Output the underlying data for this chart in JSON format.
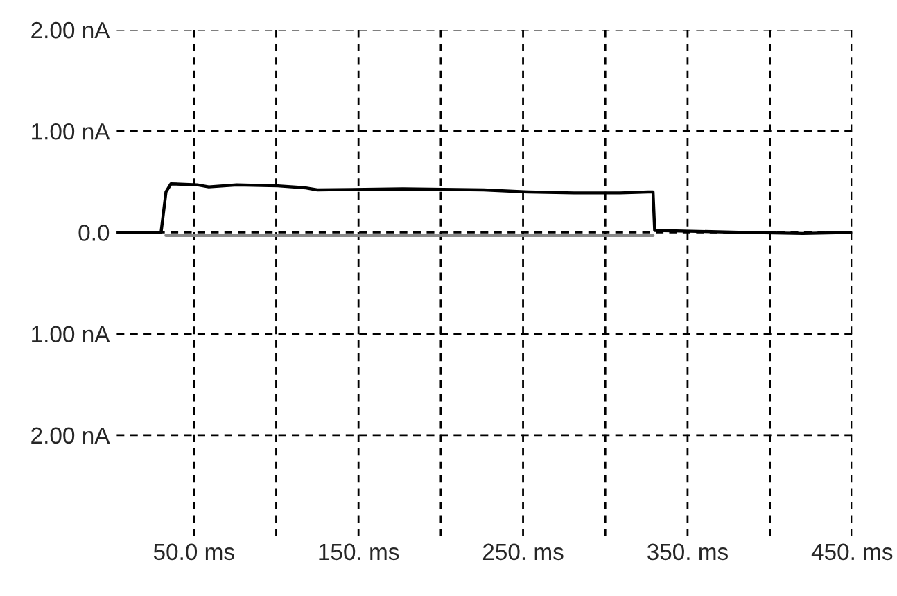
{
  "chart_data": {
    "type": "line",
    "xlim": [
      3,
      450
    ],
    "ylim": [
      -3,
      2
    ],
    "xticks": [
      {
        "value": 50,
        "label": "50.0 ms"
      },
      {
        "value": 100,
        "label": null
      },
      {
        "value": 150,
        "label": "150. ms"
      },
      {
        "value": 200,
        "label": null
      },
      {
        "value": 250,
        "label": "250. ms"
      },
      {
        "value": 300,
        "label": null
      },
      {
        "value": 350,
        "label": "350. ms"
      },
      {
        "value": 400,
        "label": null
      },
      {
        "value": 450,
        "label": "450. ms"
      }
    ],
    "yticks": [
      {
        "value": -2,
        "label": "2.00 nA"
      },
      {
        "value": -1,
        "label": "1.00 nA"
      },
      {
        "value": 0,
        "label": "0.0"
      },
      {
        "value": 1,
        "label": "1.00 nA"
      },
      {
        "value": 2,
        "label": "2.00 nA"
      }
    ],
    "grid": true,
    "line_style": "solid",
    "marker": "none",
    "series": [
      {
        "color": "#000000",
        "x": [
          3.5,
          30,
          33,
          36,
          52,
          59,
          76,
          101,
          118,
          125,
          177,
          226,
          253,
          281,
          309,
          326,
          329,
          330,
          385,
          420,
          450
        ],
        "values": [
          0.0,
          0.0,
          0.4,
          0.48,
          0.47,
          0.45,
          0.47,
          0.46,
          0.44,
          0.42,
          0.43,
          0.42,
          0.4,
          0.39,
          0.39,
          0.4,
          0.4,
          0.02,
          0.0,
          -0.01,
          0.0
        ]
      },
      {
        "color": "#8a8a8a",
        "x": [
          33,
          100,
          200,
          300,
          329
        ],
        "values": [
          -0.03,
          -0.03,
          -0.03,
          -0.03,
          -0.03
        ]
      }
    ]
  }
}
